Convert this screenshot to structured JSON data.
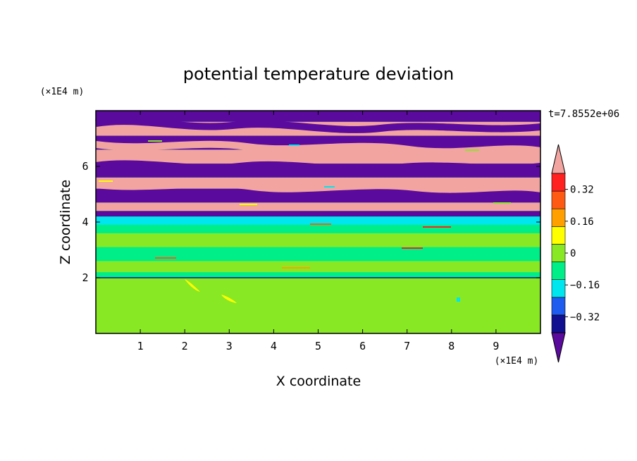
{
  "chart_data": {
    "type": "heatmap",
    "title": "potential temperature deviation",
    "xlabel": "X coordinate",
    "ylabel": "Z coordinate",
    "x_unit": "(×1E4 m)",
    "y_unit": "(×1E4 m)",
    "time_label": "t=7.8552e+06",
    "xlim": [
      0,
      10
    ],
    "ylim": [
      0,
      8
    ],
    "x_ticks": [
      1,
      2,
      3,
      4,
      5,
      6,
      7,
      8,
      9
    ],
    "x_tick_labels": [
      "1",
      "2",
      "3",
      "4",
      "5",
      "6",
      "7",
      "8",
      "9"
    ],
    "y_ticks": [
      2,
      4,
      6
    ],
    "y_tick_labels": [
      "2",
      "4",
      "6"
    ],
    "colorbar": {
      "levels": [
        -0.4,
        -0.32,
        -0.24,
        -0.16,
        -0.08,
        0,
        0.08,
        0.16,
        0.24,
        0.32,
        0.4
      ],
      "tick_values": [
        0.32,
        0.16,
        0,
        -0.16,
        -0.32
      ],
      "tick_labels": [
        "0.32",
        "0.16",
        "0",
        "−0.16",
        "−0.32"
      ],
      "colors": [
        "#5b0a9e",
        "#101090",
        "#1e5cf0",
        "#00e6ee",
        "#00ee88",
        "#88e824",
        "#ffff00",
        "#ffa000",
        "#ff5a14",
        "#ff2020",
        "#f2a5a0"
      ],
      "extend": "both"
    },
    "layers": [
      {
        "z_bottom": 0.0,
        "z_top": 2.0,
        "value": 0.02
      },
      {
        "z_bottom": 2.0,
        "z_top": 2.2,
        "value": -0.04
      },
      {
        "z_bottom": 2.2,
        "z_top": 2.6,
        "value": 0.02
      },
      {
        "z_bottom": 2.6,
        "z_top": 3.1,
        "value": -0.04
      },
      {
        "z_bottom": 3.1,
        "z_top": 3.6,
        "value": 0.02
      },
      {
        "z_bottom": 3.6,
        "z_top": 3.9,
        "value": -0.04
      },
      {
        "z_bottom": 3.9,
        "z_top": 4.2,
        "value": -0.1
      },
      {
        "z_bottom": 4.2,
        "z_top": 4.4,
        "value": -0.36
      },
      {
        "z_bottom": 4.4,
        "z_top": 4.7,
        "value": 0.42
      },
      {
        "z_bottom": 4.7,
        "z_top": 5.2,
        "value": -0.42
      },
      {
        "z_bottom": 5.2,
        "z_top": 5.6,
        "value": 0.42
      },
      {
        "z_bottom": 5.6,
        "z_top": 6.1,
        "value": -0.42
      },
      {
        "z_bottom": 6.1,
        "z_top": 6.6,
        "value": 0.42
      },
      {
        "z_bottom": 6.6,
        "z_top": 7.1,
        "value": -0.42
      },
      {
        "z_bottom": 7.1,
        "z_top": 7.6,
        "value": 0.42
      },
      {
        "z_bottom": 7.6,
        "z_top": 8.0,
        "value": -0.42
      }
    ]
  }
}
